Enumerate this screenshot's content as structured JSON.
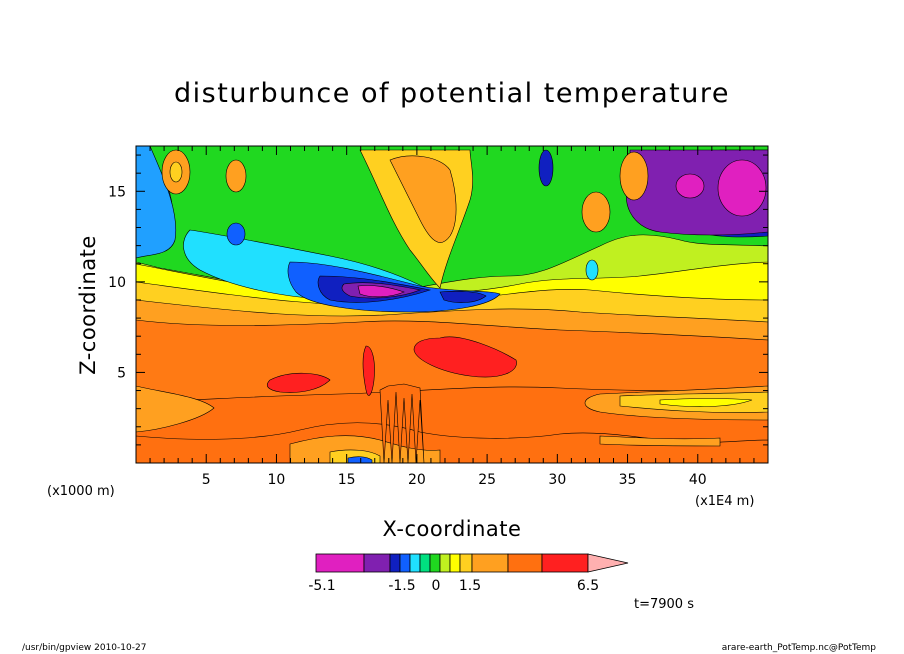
{
  "chart_data": {
    "type": "heatmap",
    "title": "disturbunce of potential temperature",
    "xlabel": "X-coordinate",
    "ylabel": "Z-coordinate",
    "x_unit_left": "(x1000 m)",
    "x_unit_right": "(x1E4 m)",
    "x_ticks": [
      "5",
      "10",
      "15",
      "20",
      "25",
      "30",
      "35",
      "40"
    ],
    "y_ticks": [
      "5",
      "10",
      "15"
    ],
    "xlim": [
      0,
      45
    ],
    "ylim": [
      0,
      17.5
    ],
    "time_label": "t=7900 s",
    "colorbar": {
      "tick_labels": [
        "-5.1",
        "-1.5",
        "0",
        "1.5",
        "6.5"
      ],
      "levels": [
        -5.1,
        -3.9,
        -3.0,
        -2.2,
        -1.5,
        -1.0,
        -0.5,
        0,
        0.5,
        1.0,
        1.5,
        2.5,
        4.0,
        5.2,
        6.5
      ],
      "colors": [
        "#e020c0",
        "#8020b0",
        "#1020c0",
        "#1060ff",
        "#20e0ff",
        "#00e080",
        "#20d820",
        "#c0f020",
        "#ffff00",
        "#ffd020",
        "#ffa020",
        "#ff7010",
        "#ff2020",
        "#ff8080",
        "#ffb0b0"
      ]
    }
  },
  "footer": {
    "left": "/usr/bin/gpview  2010-10-27",
    "right": "arare-earth_PotTemp.nc@PotTemp"
  }
}
